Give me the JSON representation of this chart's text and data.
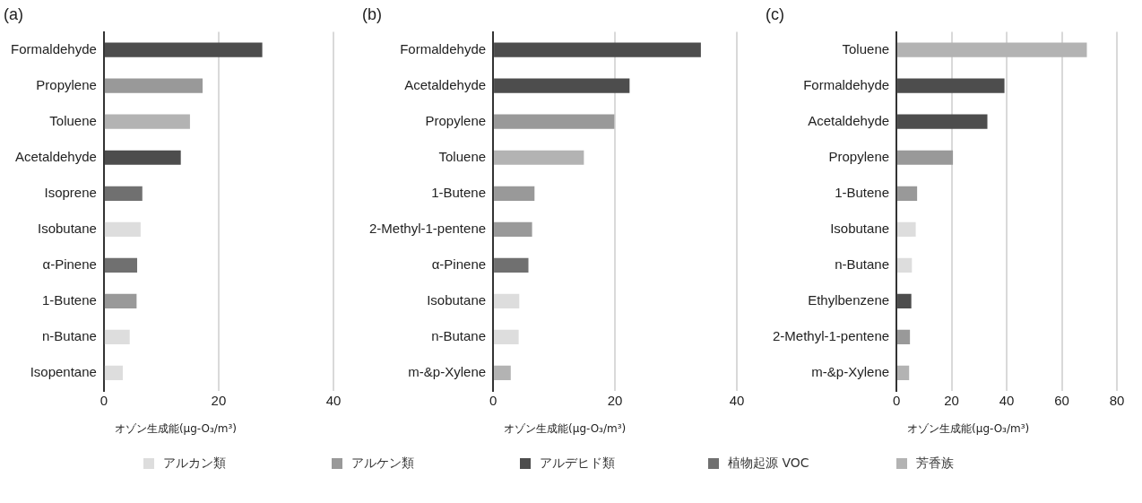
{
  "chart_data": [
    {
      "type": "bar",
      "orientation": "horizontal",
      "title": "(a)",
      "xlabel": "オゾン生成能(μg-O₃/m³)",
      "categories": [
        "Formaldehyde",
        "Propylene",
        "Toluene",
        "Acetaldehyde",
        "Isoprene",
        "Isobutane",
        "α-Pinene",
        "1-Butene",
        "n-Butane",
        "Isopentane"
      ],
      "xlim": [
        0,
        40
      ],
      "xticks": [
        0,
        20,
        40
      ],
      "grid": "x",
      "legend": "bottom",
      "series": [
        {
          "name": "アルカン類",
          "color": "#dddddd",
          "values": [
            null,
            null,
            null,
            null,
            null,
            6.4,
            null,
            null,
            4.5,
            3.3
          ]
        },
        {
          "name": "アルケン類",
          "color": "#999999",
          "values": [
            null,
            17.2,
            null,
            null,
            null,
            null,
            null,
            5.7,
            null,
            null
          ]
        },
        {
          "name": "アルデヒド類",
          "color": "#4d4d4d",
          "values": [
            27.6,
            null,
            null,
            13.4,
            null,
            null,
            null,
            null,
            null,
            null
          ]
        },
        {
          "name": "植物起源 VOC",
          "color": "#707070",
          "values": [
            null,
            null,
            null,
            null,
            6.7,
            null,
            5.8,
            null,
            null,
            null
          ]
        },
        {
          "name": "芳香族",
          "color": "#b3b3b3",
          "values": [
            null,
            null,
            15.0,
            null,
            null,
            null,
            null,
            null,
            null,
            null
          ]
        }
      ]
    },
    {
      "type": "bar",
      "orientation": "horizontal",
      "title": "(b)",
      "xlabel": "オゾン生成能(μg-O₃/m³)",
      "categories": [
        "Formaldehyde",
        "Acetaldehyde",
        "Propylene",
        "Toluene",
        "1-Butene",
        "2-Methyl-1-pentene",
        "α-Pinene",
        "Isobutane",
        "n-Butane",
        "m-&p-Xylene"
      ],
      "xlim": [
        0,
        40
      ],
      "xticks": [
        0,
        20,
        40
      ],
      "grid": "x",
      "series": [
        {
          "color": "#dddddd",
          "values": [
            null,
            null,
            null,
            null,
            null,
            null,
            null,
            4.3,
            4.2,
            null
          ]
        },
        {
          "color": "#999999",
          "values": [
            null,
            null,
            19.9,
            null,
            6.8,
            6.4,
            null,
            null,
            null,
            null
          ]
        },
        {
          "color": "#4d4d4d",
          "values": [
            34.1,
            22.4,
            null,
            null,
            null,
            null,
            null,
            null,
            null,
            null
          ]
        },
        {
          "color": "#707070",
          "values": [
            null,
            null,
            null,
            null,
            null,
            null,
            5.8,
            null,
            null,
            null
          ]
        },
        {
          "color": "#b3b3b3",
          "values": [
            null,
            null,
            null,
            14.9,
            null,
            null,
            null,
            null,
            null,
            2.9
          ]
        }
      ]
    },
    {
      "type": "bar",
      "orientation": "horizontal",
      "title": "(c)",
      "xlabel": "オゾン生成能(μg-O₃/m³)",
      "categories": [
        "Toluene",
        "Formaldehyde",
        "Acetaldehyde",
        "Propylene",
        "1-Butene",
        "Isobutane",
        "n-Butane",
        "Ethylbenzene",
        "2-Methyl-1-pentene",
        "m-&p-Xylene"
      ],
      "xlim": [
        0,
        80
      ],
      "xticks": [
        0,
        20,
        40,
        60,
        80
      ],
      "grid": "x",
      "series": [
        {
          "color": "#dddddd",
          "values": [
            null,
            null,
            null,
            null,
            null,
            7.0,
            5.6,
            null,
            null,
            null
          ]
        },
        {
          "color": "#999999",
          "values": [
            null,
            null,
            null,
            20.5,
            7.5,
            null,
            null,
            null,
            4.9,
            null
          ]
        },
        {
          "color": "#4d4d4d",
          "values": [
            null,
            39.2,
            33.0,
            null,
            null,
            null,
            null,
            5.4,
            null,
            null
          ]
        },
        {
          "color": "#b3b3b3",
          "values": [
            69.1,
            null,
            null,
            null,
            null,
            null,
            null,
            null,
            null,
            4.6
          ]
        }
      ]
    }
  ]
}
